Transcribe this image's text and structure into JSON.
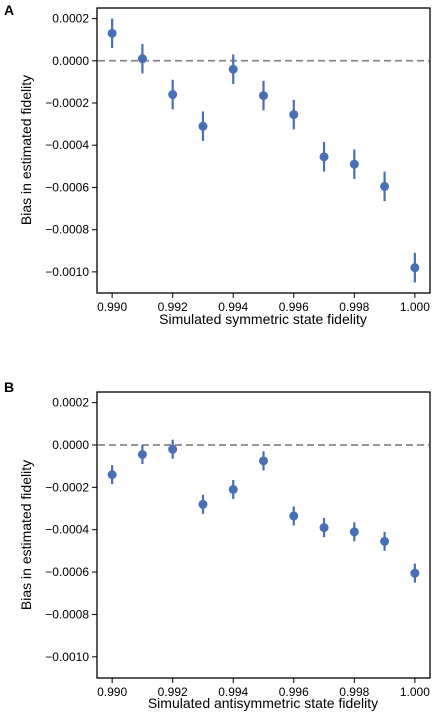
{
  "chart_data": [
    {
      "type": "scatter",
      "panel_label": "A",
      "xlabel": "Simulated symmetric state fidelity",
      "ylabel": "Bias in estimated fidelity",
      "xlim": [
        0.9895,
        1.0005
      ],
      "ylim": [
        -0.0011,
        0.00025
      ],
      "xticks": [
        0.99,
        0.992,
        0.994,
        0.996,
        0.998,
        1.0
      ],
      "xtick_labels": [
        "0.990",
        "0.992",
        "0.994",
        "0.996",
        "0.998",
        "1.000"
      ],
      "yticks": [
        0.0002,
        0.0,
        -0.0002,
        -0.0004,
        -0.0006,
        -0.0008,
        -0.001
      ],
      "ytick_labels": [
        "0.0002",
        "0.0000",
        "−0.0002",
        "−0.0004",
        "−0.0006",
        "−0.0008",
        "−0.0010"
      ],
      "reference_line": 0.0,
      "grid": false,
      "point_color": "#4a6fb5",
      "reference_color": "#888888",
      "x": [
        0.99,
        0.991,
        0.992,
        0.993,
        0.994,
        0.995,
        0.996,
        0.997,
        0.998,
        0.999,
        1.0
      ],
      "y": [
        0.00013,
        1e-05,
        -0.00016,
        -0.00031,
        -4e-05,
        -0.000165,
        -0.000255,
        -0.000455,
        -0.00049,
        -0.000595,
        -0.00098
      ],
      "err": [
        7e-05,
        7e-05,
        7e-05,
        7e-05,
        7e-05,
        7e-05,
        7e-05,
        7e-05,
        7e-05,
        7e-05,
        7e-05
      ]
    },
    {
      "type": "scatter",
      "panel_label": "B",
      "xlabel": "Simulated antisymmetric state fidelity",
      "ylabel": "Bias in estimated fidelity",
      "xlim": [
        0.9895,
        1.0005
      ],
      "ylim": [
        -0.0011,
        0.00025
      ],
      "xticks": [
        0.99,
        0.992,
        0.994,
        0.996,
        0.998,
        1.0
      ],
      "xtick_labels": [
        "0.990",
        "0.992",
        "0.994",
        "0.996",
        "0.998",
        "1.000"
      ],
      "yticks": [
        0.0002,
        0.0,
        -0.0002,
        -0.0004,
        -0.0006,
        -0.0008,
        -0.001
      ],
      "ytick_labels": [
        "0.0002",
        "0.0000",
        "−0.0002",
        "−0.0004",
        "−0.0006",
        "−0.0008",
        "−0.0010"
      ],
      "reference_line": 0.0,
      "grid": false,
      "point_color": "#4a6fb5",
      "reference_color": "#888888",
      "x": [
        0.99,
        0.991,
        0.992,
        0.993,
        0.994,
        0.995,
        0.996,
        0.997,
        0.998,
        0.999,
        1.0
      ],
      "y": [
        -0.00014,
        -4.5e-05,
        -2e-05,
        -0.00028,
        -0.00021,
        -7.5e-05,
        -0.000335,
        -0.00039,
        -0.00041,
        -0.000455,
        -0.000605
      ],
      "err": [
        4.5e-05,
        4.5e-05,
        4.5e-05,
        4.5e-05,
        4.5e-05,
        4.5e-05,
        4.5e-05,
        4.5e-05,
        4.5e-05,
        4.5e-05,
        4.5e-05
      ]
    }
  ]
}
